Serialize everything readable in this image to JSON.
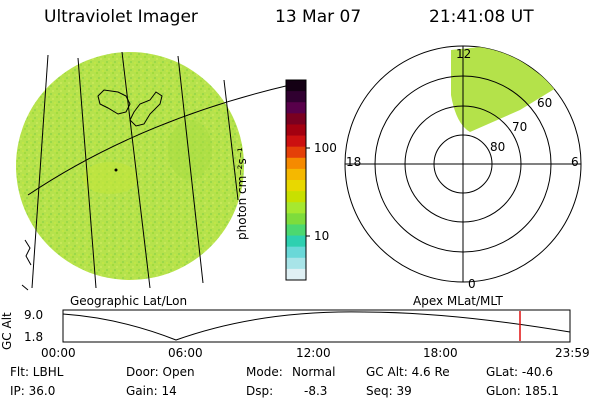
{
  "header": {
    "instrument": "Ultraviolet Imager",
    "date": "13 Mar 07",
    "time": "21:41:08 UT"
  },
  "panels": {
    "left_caption": "Geographic Lat/Lon",
    "right_caption": "Apex MLat/MLT"
  },
  "colorbar": {
    "unit_label": "photon cm⁻²s⁻¹",
    "tick_labels": [
      "100",
      "10"
    ],
    "colors": [
      "#140014",
      "#300030",
      "#58004a",
      "#7a0020",
      "#a30010",
      "#cc1010",
      "#e44008",
      "#f58a00",
      "#f5b800",
      "#e8d800",
      "#c8e000",
      "#a6e830",
      "#7edc3c",
      "#4cd870",
      "#2ed0b0",
      "#6ad8d8",
      "#a8e4e8",
      "#dff0f4"
    ]
  },
  "polar": {
    "mlt_labels": {
      "top": "12",
      "left": "18",
      "right": "6",
      "bottom": "0"
    },
    "lat_labels": [
      "60",
      "70",
      "80"
    ]
  },
  "altitude_plot": {
    "ylabel": "GC Alt",
    "ytick_labels": [
      "9.0",
      "1.8"
    ],
    "xtick_labels": [
      "00:00",
      "06:00",
      "12:00",
      "18:00",
      "23:59"
    ]
  },
  "status": {
    "filter": "Flt: LBHL",
    "door": "Door: Open",
    "mode_label": "Mode:",
    "mode_value": "Normal",
    "gc_alt": "GC Alt: 4.6 Re",
    "glat": "GLat: -40.6",
    "ip": "IP: 36.0",
    "gain": "Gain: 14",
    "dsp_label": "Dsp:",
    "dsp_value": "-8.3",
    "seq": "Seq: 39",
    "glon": "GLon: 185.1"
  },
  "colors": {
    "fill_green": "#b4e24a",
    "marker_red": "#e01010"
  }
}
